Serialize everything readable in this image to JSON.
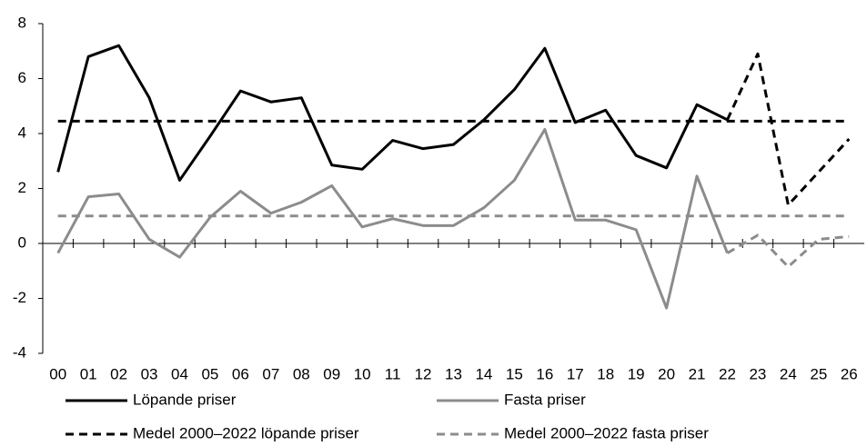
{
  "chart_data": {
    "type": "line",
    "categories": [
      "00",
      "01",
      "02",
      "03",
      "04",
      "05",
      "06",
      "07",
      "08",
      "09",
      "10",
      "11",
      "12",
      "13",
      "14",
      "15",
      "16",
      "17",
      "18",
      "19",
      "20",
      "21",
      "22",
      "23",
      "24",
      "25",
      "26"
    ],
    "series": [
      {
        "name": "Löpande priser",
        "color": "#000000",
        "dashed": false,
        "values": [
          2.6,
          6.8,
          7.2,
          5.3,
          2.3,
          3.9,
          5.55,
          5.15,
          5.3,
          2.85,
          2.7,
          3.75,
          3.45,
          3.6,
          4.5,
          5.6,
          7.1,
          4.4,
          4.85,
          3.2,
          2.75,
          5.05,
          4.5,
          null,
          null,
          null,
          null
        ]
      },
      {
        "name": "Fasta priser",
        "color": "#8c8c8c",
        "dashed": false,
        "values": [
          -0.35,
          1.7,
          1.8,
          0.15,
          -0.5,
          0.95,
          1.9,
          1.1,
          1.5,
          2.1,
          0.6,
          0.9,
          0.65,
          0.65,
          1.3,
          2.3,
          4.15,
          0.85,
          0.85,
          0.5,
          -2.35,
          2.45,
          -0.35,
          null,
          null,
          null,
          null
        ]
      },
      {
        "name": "Medel 2000–2022 löpande priser",
        "color": "#000000",
        "dashed": true,
        "values": [
          4.45,
          4.45,
          4.45,
          4.45,
          4.45,
          4.45,
          4.45,
          4.45,
          4.45,
          4.45,
          4.45,
          4.45,
          4.45,
          4.45,
          4.45,
          4.45,
          4.45,
          4.45,
          4.45,
          4.45,
          4.45,
          4.45,
          4.45,
          4.45,
          4.45,
          4.45,
          4.45
        ]
      },
      {
        "name": "Medel 2000–2022 fasta priser",
        "color": "#8c8c8c",
        "dashed": true,
        "values": [
          1,
          1,
          1,
          1,
          1,
          1,
          1,
          1,
          1,
          1,
          1,
          1,
          1,
          1,
          1,
          1,
          1,
          1,
          1,
          1,
          1,
          1,
          1,
          1,
          1,
          1,
          1
        ]
      },
      {
        "color": "#000000",
        "dashed": true,
        "values": [
          null,
          null,
          null,
          null,
          null,
          null,
          null,
          null,
          null,
          null,
          null,
          null,
          null,
          null,
          null,
          null,
          null,
          null,
          null,
          null,
          null,
          null,
          4.5,
          6.9,
          1.4,
          2.6,
          3.8
        ]
      },
      {
        "color": "#8c8c8c",
        "dashed": true,
        "values": [
          null,
          null,
          null,
          null,
          null,
          null,
          null,
          null,
          null,
          null,
          null,
          null,
          null,
          null,
          null,
          null,
          null,
          null,
          null,
          null,
          null,
          null,
          -0.35,
          0.3,
          -0.85,
          0.15,
          0.25
        ]
      }
    ],
    "ylim": [
      -4,
      8
    ],
    "yticks": [
      -4,
      -2,
      0,
      2,
      4,
      6,
      8
    ],
    "grid": false
  }
}
